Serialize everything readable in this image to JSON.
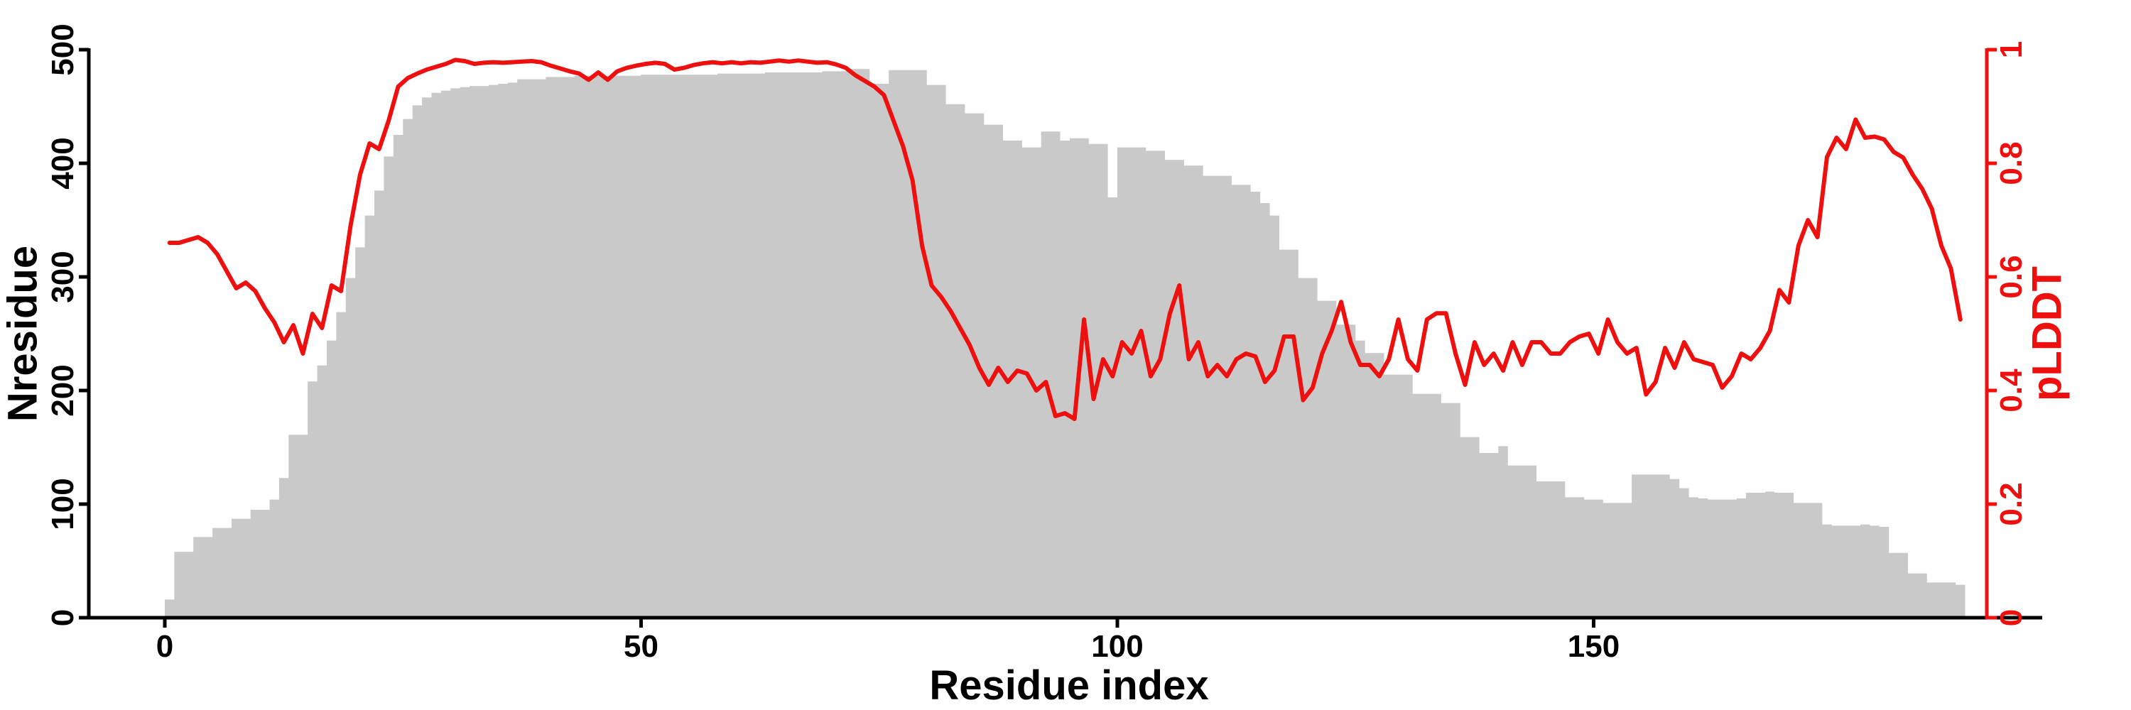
{
  "chart_data": {
    "type": "bar",
    "title": "",
    "xlabel": "Residue index",
    "ylabel_left": "Nresidue",
    "ylabel_right": "pLDDT",
    "colors": {
      "bar": "#c9c9c9",
      "line": "#ee0f0f",
      "axis": "#000000"
    },
    "axes": {
      "x": {
        "label": "Residue index",
        "ticks": [
          0,
          50,
          100,
          150
        ],
        "range": [
          0,
          189
        ]
      },
      "left": {
        "label": "Nresidue",
        "ticks": [
          0,
          100,
          200,
          300,
          400,
          500
        ],
        "range": [
          0,
          500
        ]
      },
      "right": {
        "label": "pLDDT",
        "ticks": [
          0,
          0.2,
          0.4,
          0.6,
          0.8,
          1
        ],
        "range": [
          0,
          1
        ],
        "color": "#ee0f0f"
      }
    },
    "legend": "none",
    "grid": false,
    "n_points": 189,
    "x_start": 0,
    "x_step": 1,
    "series": [
      {
        "name": "Nresidue",
        "type": "bar",
        "color": "#c9c9c9",
        "axis": "left",
        "values": [
          16,
          58,
          58,
          71,
          71,
          79,
          79,
          87,
          87,
          95,
          95,
          104,
          123,
          161,
          161,
          208,
          222,
          244,
          269,
          299,
          326,
          354,
          376,
          406,
          425,
          439,
          451,
          458,
          462,
          464,
          466,
          467,
          468,
          468,
          469,
          470,
          471,
          474,
          474,
          474,
          476,
          476,
          476,
          477,
          477,
          477,
          477,
          477,
          477,
          477,
          478,
          478,
          478,
          478,
          478,
          478,
          478,
          478,
          479,
          479,
          479,
          479,
          479,
          480,
          480,
          480,
          480,
          480,
          480,
          481,
          481,
          481,
          483,
          483,
          470,
          470,
          482,
          482,
          482,
          482,
          469,
          469,
          452,
          452,
          444,
          444,
          434,
          434,
          420,
          420,
          414,
          414,
          428,
          428,
          420,
          422,
          422,
          417,
          417,
          370,
          414,
          414,
          414,
          411,
          411,
          403,
          403,
          398,
          398,
          389,
          389,
          389,
          381,
          381,
          375,
          365,
          354,
          324,
          324,
          299,
          299,
          279,
          279,
          258,
          258,
          244,
          233,
          233,
          214,
          214,
          214,
          197,
          197,
          197,
          189,
          189,
          159,
          159,
          145,
          145,
          151,
          134,
          134,
          134,
          120,
          120,
          120,
          106,
          106,
          104,
          104,
          101,
          101,
          101,
          126,
          126,
          126,
          126,
          122,
          114,
          106,
          105,
          104,
          104,
          104,
          105,
          110,
          110,
          111,
          110,
          110,
          101,
          101,
          101,
          82,
          81,
          81,
          81,
          82,
          81,
          80,
          57,
          57,
          39,
          39,
          31,
          31,
          31,
          29
        ]
      },
      {
        "name": "pLDDT",
        "type": "line",
        "color": "#ee0f0f",
        "axis": "right",
        "values": [
          0.66,
          0.66,
          0.665,
          0.67,
          0.66,
          0.64,
          0.61,
          0.58,
          0.59,
          0.575,
          0.545,
          0.52,
          0.485,
          0.515,
          0.465,
          0.535,
          0.51,
          0.585,
          0.575,
          0.69,
          0.78,
          0.835,
          0.825,
          0.875,
          0.935,
          0.95,
          0.958,
          0.965,
          0.97,
          0.975,
          0.982,
          0.98,
          0.975,
          0.977,
          0.978,
          0.977,
          0.978,
          0.979,
          0.98,
          0.978,
          0.972,
          0.967,
          0.962,
          0.958,
          0.947,
          0.96,
          0.947,
          0.962,
          0.968,
          0.972,
          0.975,
          0.977,
          0.975,
          0.965,
          0.968,
          0.973,
          0.976,
          0.978,
          0.976,
          0.978,
          0.976,
          0.978,
          0.977,
          0.979,
          0.981,
          0.979,
          0.981,
          0.979,
          0.977,
          0.978,
          0.974,
          0.968,
          0.955,
          0.945,
          0.935,
          0.92,
          0.875,
          0.83,
          0.77,
          0.655,
          0.585,
          0.565,
          0.54,
          0.51,
          0.48,
          0.44,
          0.41,
          0.44,
          0.415,
          0.435,
          0.43,
          0.4,
          0.415,
          0.355,
          0.36,
          0.35,
          0.525,
          0.385,
          0.455,
          0.425,
          0.485,
          0.465,
          0.505,
          0.425,
          0.455,
          0.535,
          0.585,
          0.455,
          0.485,
          0.425,
          0.445,
          0.425,
          0.455,
          0.465,
          0.46,
          0.415,
          0.435,
          0.495,
          0.495,
          0.383,
          0.405,
          0.465,
          0.505,
          0.556,
          0.485,
          0.445,
          0.445,
          0.425,
          0.455,
          0.525,
          0.455,
          0.435,
          0.525,
          0.536,
          0.536,
          0.465,
          0.41,
          0.485,
          0.445,
          0.465,
          0.435,
          0.485,
          0.445,
          0.485,
          0.485,
          0.465,
          0.465,
          0.485,
          0.495,
          0.5,
          0.465,
          0.525,
          0.485,
          0.465,
          0.475,
          0.393,
          0.415,
          0.475,
          0.44,
          0.485,
          0.455,
          0.45,
          0.445,
          0.405,
          0.425,
          0.465,
          0.455,
          0.475,
          0.505,
          0.577,
          0.555,
          0.655,
          0.7,
          0.67,
          0.811,
          0.845,
          0.825,
          0.877,
          0.845,
          0.847,
          0.842,
          0.82,
          0.81,
          0.78,
          0.755,
          0.72,
          0.655,
          0.615,
          0.525
        ]
      }
    ]
  }
}
